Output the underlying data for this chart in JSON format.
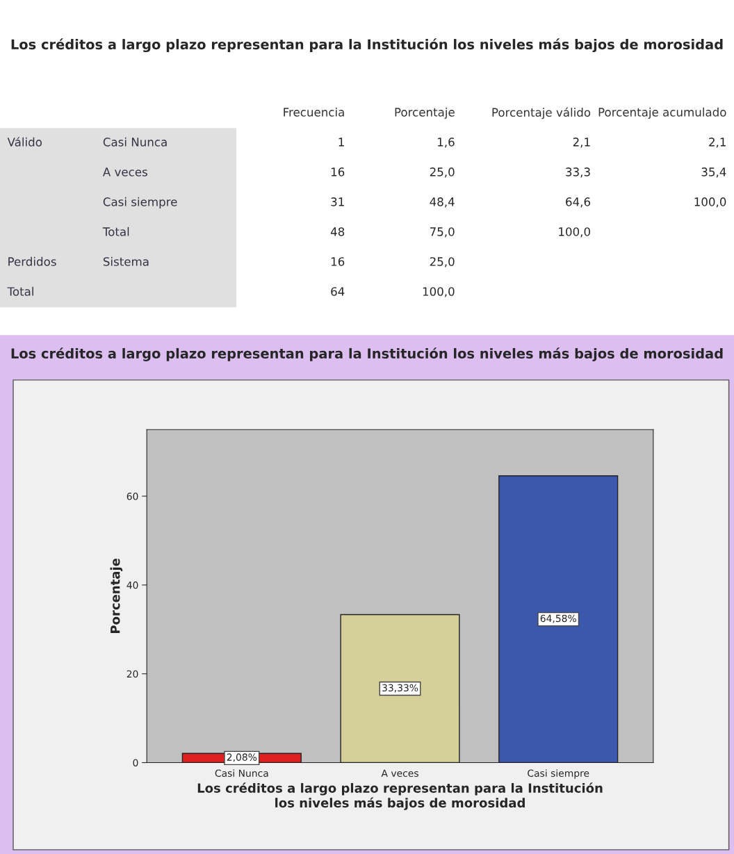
{
  "chart_data": [
    {
      "type": "other",
      "title": "Los créditos a largo plazo representan para la Institución los niveles más bajos de morosidad",
      "categories": [
        "Frecuencia",
        "Porcentaje",
        "Porcentaje válido",
        "Porcentaje acumulado"
      ],
      "y_categories": [
        "Válido",
        null,
        null,
        null,
        "Perdidos",
        "Total"
      ],
      "y2_categories": [
        "Casi Nunca",
        "A veces",
        "Casi siempre",
        "Total",
        "Sistema",
        null
      ],
      "cell_labels": [
        [
          "1",
          "1,6",
          "2,1",
          "2,1"
        ],
        [
          "16",
          "25,0",
          "33,3",
          "35,4"
        ],
        [
          "31",
          "48,4",
          "64,6",
          "100,0"
        ],
        [
          "48",
          "75,0",
          "100,0",
          null
        ],
        [
          "16",
          "25,0",
          null,
          null
        ],
        [
          "64",
          "100,0",
          null,
          null
        ]
      ]
    },
    {
      "type": "bar",
      "title": "Los créditos a largo plazo representan para la Institución los niveles más bajos de morosidad",
      "xlabel": "Los créditos a largo plazo representan para la Institución\nlos niveles más bajos de morosidad",
      "ylabel": "Porcentaje",
      "categories": [
        "Casi Nunca",
        "A veces",
        "Casi siempre"
      ],
      "values": [
        2.08,
        33.33,
        64.58
      ],
      "colors": [
        "#e02020",
        "#d5d09a",
        "#3c58ac"
      ],
      "value_labels": [
        "2,08%",
        "33,33%",
        "64,58%"
      ],
      "ylim": [
        0,
        75
      ],
      "yticks": [
        0,
        20,
        40,
        60
      ]
    }
  ]
}
